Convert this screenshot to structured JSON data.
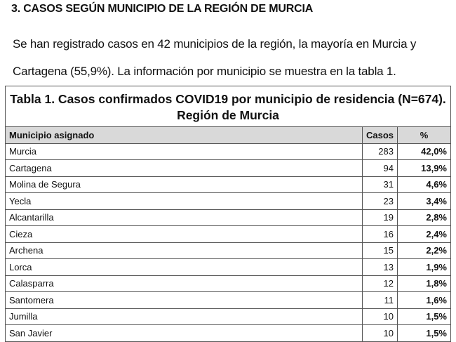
{
  "heading": "3. CASOS SEGÚN MUNICIPIO DE LA REGIÓN DE MURCIA",
  "paragraph_line1": "Se han registrado casos en 42 municipios de la región, la mayoría en Murcia y",
  "paragraph_line2": "Cartagena (55,9%). La información por municipio se muestra en la tabla 1.",
  "table": {
    "title_line1": "Tabla 1. Casos confirmados COVID19 por municipio de residencia (N=674).",
    "title_line2": "Región de Murcia",
    "headers": [
      "Municipio asignado",
      "Casos",
      "%"
    ],
    "rows": [
      [
        "Murcia",
        "283",
        "42,0%"
      ],
      [
        "Cartagena",
        "94",
        "13,9%"
      ],
      [
        "Molina de Segura",
        "31",
        "4,6%"
      ],
      [
        "Yecla",
        "23",
        "3,4%"
      ],
      [
        "Alcantarilla",
        "19",
        "2,8%"
      ],
      [
        "Cieza",
        "16",
        "2,4%"
      ],
      [
        "Archena",
        "15",
        "2,2%"
      ],
      [
        "Lorca",
        "13",
        "1,9%"
      ],
      [
        "Calasparra",
        "12",
        "1,8%"
      ],
      [
        "Santomera",
        "11",
        "1,6%"
      ],
      [
        "Jumilla",
        "10",
        "1,5%"
      ],
      [
        "San Javier",
        "10",
        "1,5%"
      ]
    ]
  }
}
